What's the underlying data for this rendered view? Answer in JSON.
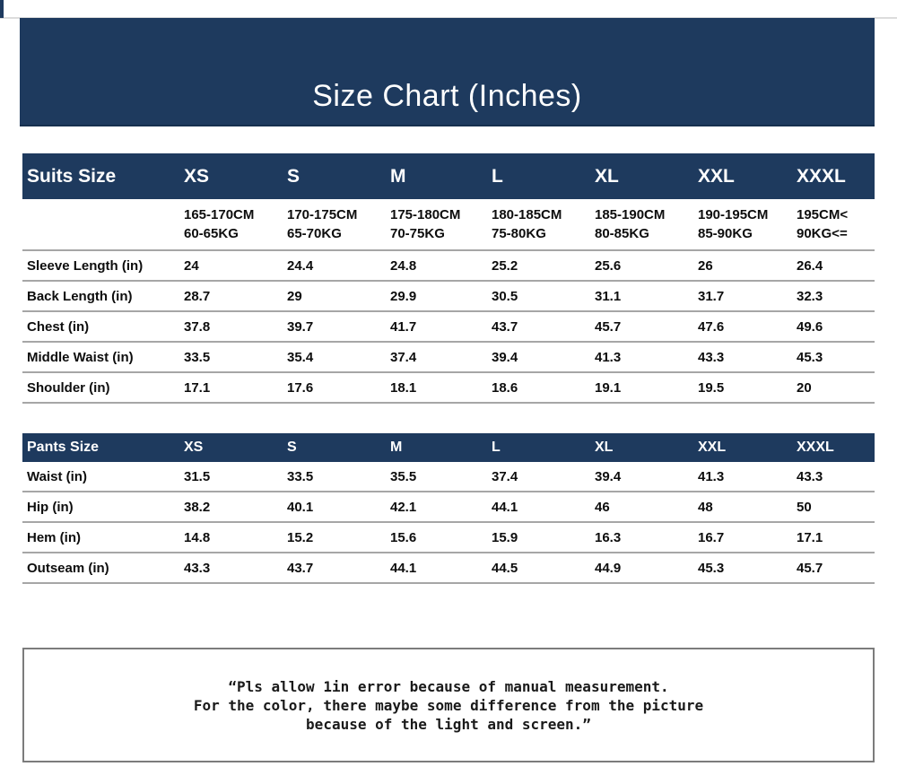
{
  "title": "Size Chart (Inches)",
  "colors": {
    "navy": "#1e3a5e",
    "separator": "#a6a6a6",
    "note_border": "#7c7c7c"
  },
  "suits_table": {
    "header_label": "Suits Size",
    "sizes": [
      "XS",
      "S",
      "M",
      "L",
      "XL",
      "XXL",
      "XXXL"
    ],
    "height_weight": [
      {
        "height": "165-170CM",
        "weight": "60-65KG"
      },
      {
        "height": "170-175CM",
        "weight": "65-70KG"
      },
      {
        "height": "175-180CM",
        "weight": "70-75KG"
      },
      {
        "height": "180-185CM",
        "weight": "75-80KG"
      },
      {
        "height": "185-190CM",
        "weight": "80-85KG"
      },
      {
        "height": "190-195CM",
        "weight": "85-90KG"
      },
      {
        "height": "195CM<",
        "weight": "90KG<="
      }
    ],
    "rows": [
      {
        "label": "Sleeve Length (in)",
        "values": [
          "24",
          "24.4",
          "24.8",
          "25.2",
          "25.6",
          "26",
          "26.4"
        ]
      },
      {
        "label": "Back Length (in)",
        "values": [
          "28.7",
          "29",
          "29.9",
          "30.5",
          "31.1",
          "31.7",
          "32.3"
        ]
      },
      {
        "label": "Chest (in)",
        "values": [
          "37.8",
          "39.7",
          "41.7",
          "43.7",
          "45.7",
          "47.6",
          "49.6"
        ]
      },
      {
        "label": "Middle Waist (in)",
        "values": [
          "33.5",
          "35.4",
          "37.4",
          "39.4",
          "41.3",
          "43.3",
          "45.3"
        ]
      },
      {
        "label": "Shoulder (in)",
        "values": [
          "17.1",
          "17.6",
          "18.1",
          "18.6",
          "19.1",
          "19.5",
          "20"
        ]
      }
    ]
  },
  "pants_table": {
    "header_label": "Pants Size",
    "sizes": [
      "XS",
      "S",
      "M",
      "L",
      "XL",
      "XXL",
      "XXXL"
    ],
    "rows": [
      {
        "label": "Waist (in)",
        "values": [
          "31.5",
          "33.5",
          "35.5",
          "37.4",
          "39.4",
          "41.3",
          "43.3"
        ]
      },
      {
        "label": "Hip (in)",
        "values": [
          "38.2",
          "40.1",
          "42.1",
          "44.1",
          "46",
          "48",
          "50"
        ]
      },
      {
        "label": "Hem (in)",
        "values": [
          "14.8",
          "15.2",
          "15.6",
          "15.9",
          "16.3",
          "16.7",
          "17.1"
        ]
      },
      {
        "label": "Outseam (in)",
        "values": [
          "43.3",
          "43.7",
          "44.1",
          "44.5",
          "44.9",
          "45.3",
          "45.7"
        ]
      }
    ]
  },
  "note": {
    "line1": "“Pls allow 1in error because of manual measurement.",
    "line2": "For the color, there maybe some difference from the picture",
    "line3": "because of the light and screen.”"
  }
}
